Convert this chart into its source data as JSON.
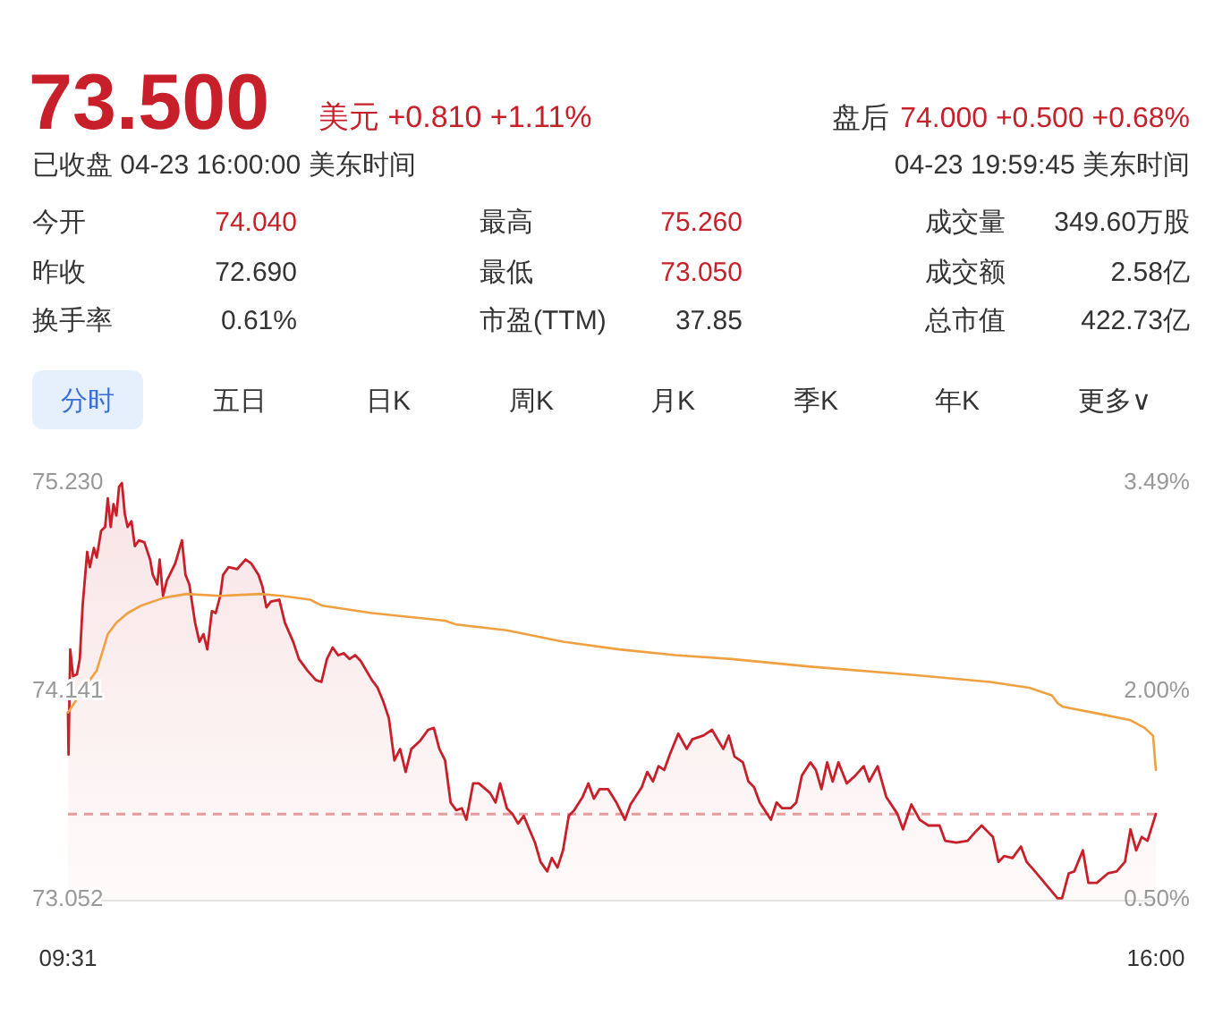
{
  "chart_data": {
    "type": "line",
    "title": "73.500",
    "annotations": [
      "美元 +0.810 +1.11%",
      "盘后",
      "74.000 +0.500 +0.68%",
      "已收盘 04-23 16:00:00 美东时间",
      "04-23 19:59:45 美东时间",
      "今开",
      "74.040",
      "最高",
      "75.260",
      "成交量",
      "349.60万股",
      "昨收",
      "72.690",
      "最低",
      "73.050",
      "成交额",
      "2.58亿",
      "换手率",
      "0.61%",
      "市盈(TTM)",
      "37.85",
      "总市值",
      "422.73亿",
      "分时",
      "五日",
      "日K",
      "周K",
      "月K",
      "季K",
      "年K",
      "更多∨"
    ],
    "xlim": [
      9.5167,
      16.0
    ],
    "xticks": [
      {
        "value": 9.5167,
        "label": "09:31"
      },
      {
        "value": 16.0,
        "label": "16:00"
      }
    ],
    "ylim": [
      73.052,
      75.23
    ],
    "yticks": [
      {
        "value": 73.052,
        "label": "73.052"
      },
      {
        "value": 74.141,
        "label": "74.141"
      },
      {
        "value": 75.23,
        "label": "75.230"
      }
    ],
    "y2lim": [
      0.497,
      3.494
    ],
    "y2ticks": [
      {
        "value": 0.497,
        "label": "0.50%"
      },
      {
        "value": 1.996,
        "label": "2.00%"
      },
      {
        "value": 3.494,
        "label": "3.49%"
      }
    ],
    "grid": false,
    "ref_lines": [
      {
        "axis": "y",
        "value": 73.5,
        "color": "#e8a0a0",
        "line_style": "dashed"
      }
    ],
    "series": [
      {
        "type": "area",
        "color": "#c8202a",
        "x": [
          9.5167,
          9.52,
          9.53,
          9.547,
          9.57,
          9.587,
          9.604,
          9.631,
          9.647,
          9.671,
          9.688,
          9.714,
          9.738,
          9.754,
          9.771,
          9.788,
          9.805,
          9.821,
          9.838,
          9.855,
          9.872,
          9.895,
          9.915,
          9.939,
          9.972,
          10.006,
          10.022,
          10.049,
          10.063,
          10.083,
          10.106,
          10.156,
          10.196,
          10.217,
          10.24,
          10.274,
          10.3,
          10.324,
          10.347,
          10.374,
          10.397,
          10.424,
          10.441,
          10.474,
          10.525,
          10.575,
          10.608,
          10.652,
          10.675,
          10.699,
          10.726,
          10.776,
          10.809,
          10.859,
          10.893,
          10.943,
          10.994,
          11.027,
          11.06,
          11.094,
          11.127,
          11.161,
          11.194,
          11.228,
          11.261,
          11.328,
          11.362,
          11.395,
          11.429,
          11.462,
          11.496,
          11.529,
          11.563,
          11.613,
          11.663,
          11.697,
          11.73,
          11.764,
          11.797,
          11.831,
          11.864,
          11.891,
          11.931,
          11.965,
          12.032,
          12.065,
          12.092,
          12.132,
          12.166,
          12.199,
          12.233,
          12.266,
          12.3,
          12.333,
          12.373,
          12.4,
          12.434,
          12.467,
          12.501,
          12.534,
          12.584,
          12.618,
          12.651,
          12.685,
          12.735,
          12.785,
          12.836,
          12.869,
          12.936,
          12.969,
          13.003,
          13.036,
          13.07,
          13.103,
          13.154,
          13.204,
          13.237,
          13.304,
          13.355,
          13.388,
          13.422,
          13.455,
          13.489,
          13.539,
          13.572,
          13.606,
          13.639,
          13.706,
          13.74,
          13.773,
          13.823,
          13.857,
          13.89,
          13.941,
          13.974,
          14.007,
          14.041,
          14.074,
          14.108,
          14.158,
          14.208,
          14.259,
          14.292,
          14.342,
          14.393,
          14.46,
          14.493,
          14.543,
          14.593,
          14.644,
          14.711,
          14.744,
          14.811,
          14.878,
          14.928,
          14.962,
          14.995,
          15.029,
          15.062,
          15.096,
          15.146,
          15.196,
          15.23,
          15.28,
          15.347,
          15.414,
          15.441,
          15.481,
          15.514,
          15.565,
          15.598,
          15.648,
          15.715,
          15.766,
          15.816,
          15.849,
          15.883,
          15.916,
          15.95,
          16.0
        ],
        "values": [
          74.03,
          73.81,
          74.36,
          74.22,
          74.23,
          74.31,
          74.59,
          74.87,
          74.79,
          74.89,
          74.84,
          74.98,
          75.0,
          75.15,
          75.0,
          75.12,
          75.06,
          75.21,
          75.23,
          75.07,
          75.0,
          75.03,
          74.9,
          74.93,
          74.92,
          74.83,
          74.75,
          74.7,
          74.83,
          74.64,
          74.72,
          74.81,
          74.93,
          74.75,
          74.7,
          74.5,
          74.4,
          74.44,
          74.36,
          74.56,
          74.55,
          74.64,
          74.75,
          74.79,
          74.78,
          74.83,
          74.81,
          74.75,
          74.69,
          74.58,
          74.61,
          74.62,
          74.5,
          74.4,
          74.31,
          74.25,
          74.2,
          74.19,
          74.31,
          74.37,
          74.33,
          74.34,
          74.31,
          74.33,
          74.3,
          74.2,
          74.16,
          74.09,
          74.0,
          73.78,
          73.84,
          73.72,
          73.84,
          73.88,
          73.94,
          73.95,
          73.84,
          73.78,
          73.56,
          73.52,
          73.53,
          73.47,
          73.66,
          73.66,
          73.61,
          73.56,
          73.66,
          73.53,
          73.5,
          73.45,
          73.49,
          73.42,
          73.35,
          73.25,
          73.2,
          73.27,
          73.22,
          73.31,
          73.49,
          73.52,
          73.59,
          73.66,
          73.58,
          73.63,
          73.63,
          73.56,
          73.47,
          73.55,
          73.64,
          73.72,
          73.67,
          73.75,
          73.73,
          73.81,
          73.92,
          73.84,
          73.89,
          73.91,
          73.94,
          73.89,
          73.84,
          73.91,
          73.8,
          73.77,
          73.67,
          73.64,
          73.56,
          73.47,
          73.56,
          73.53,
          73.53,
          73.56,
          73.7,
          73.77,
          73.73,
          73.63,
          73.77,
          73.67,
          73.77,
          73.66,
          73.7,
          73.75,
          73.67,
          73.75,
          73.59,
          73.5,
          73.42,
          73.55,
          73.47,
          73.44,
          73.44,
          73.36,
          73.35,
          73.36,
          73.41,
          73.44,
          73.41,
          73.38,
          73.25,
          73.28,
          73.27,
          73.33,
          73.25,
          73.2,
          73.13,
          73.06,
          73.06,
          73.19,
          73.2,
          73.31,
          73.14,
          73.14,
          73.19,
          73.2,
          73.25,
          73.42,
          73.31,
          73.38,
          73.36,
          73.5
        ]
      },
      {
        "type": "line",
        "color": "#f0a040",
        "x": [
          9.5167,
          9.554,
          9.621,
          9.688,
          9.754,
          9.805,
          9.872,
          9.955,
          10.089,
          10.223,
          10.424,
          10.659,
          10.793,
          10.96,
          11.027,
          11.328,
          11.663,
          11.764,
          11.831,
          12.132,
          12.467,
          12.802,
          13.137,
          13.472,
          13.941,
          14.51,
          15.012,
          15.246,
          15.38,
          15.414,
          15.447,
          15.682,
          15.849,
          15.933,
          15.983,
          16.0
        ],
        "values": [
          74.03,
          74.08,
          74.17,
          74.25,
          74.44,
          74.5,
          74.55,
          74.59,
          74.63,
          74.65,
          74.64,
          74.65,
          74.64,
          74.62,
          74.59,
          74.55,
          74.52,
          74.51,
          74.49,
          74.46,
          74.4,
          74.36,
          74.33,
          74.31,
          74.27,
          74.23,
          74.19,
          74.16,
          74.12,
          74.08,
          74.06,
          74.02,
          73.99,
          73.95,
          73.91,
          73.73
        ]
      }
    ]
  }
}
